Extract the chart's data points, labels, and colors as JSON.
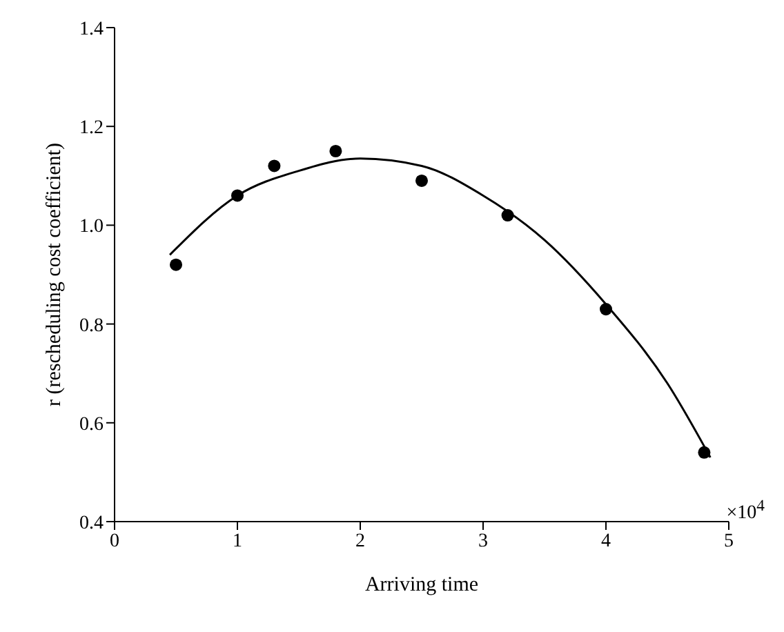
{
  "chart_data": {
    "type": "scatter",
    "xlabel": "Arriving time",
    "ylabel": "r (rescheduling cost coefficient)",
    "annotations": [
      "×10$^{4}$"
    ],
    "xlim": [
      0,
      5
    ],
    "xticks": [
      0,
      1,
      2,
      3,
      4,
      5
    ],
    "ylim": [
      0.4,
      1.4
    ],
    "yticks": [
      {
        "value": 0.4,
        "label": "0.4"
      },
      {
        "value": 0.6,
        "label": "0.6"
      },
      {
        "value": 0.8,
        "label": "0.8"
      },
      {
        "value": 1.0,
        "label": "1.0"
      },
      {
        "value": 1.2,
        "label": "1.2"
      },
      {
        "value": 1.4,
        "label": "1.4"
      }
    ],
    "grid": false,
    "series": [
      {
        "color": "#000000",
        "marker": "circle",
        "x": [
          0.5,
          1.0,
          1.3,
          1.8,
          2.5,
          3.2,
          4.0,
          4.8
        ],
        "values": [
          0.92,
          1.06,
          1.12,
          1.15,
          1.09,
          1.02,
          0.83,
          0.54
        ]
      },
      {
        "type": "line",
        "color": "#000000",
        "marker": "none",
        "line_style": "solid",
        "x": [
          0.45,
          1.0,
          1.5,
          2.0,
          2.5,
          3.0,
          3.5,
          4.0,
          4.5,
          4.85
        ],
        "values": [
          0.94,
          1.06,
          1.11,
          1.135,
          1.12,
          1.06,
          0.97,
          0.84,
          0.68,
          0.53
        ]
      }
    ]
  }
}
